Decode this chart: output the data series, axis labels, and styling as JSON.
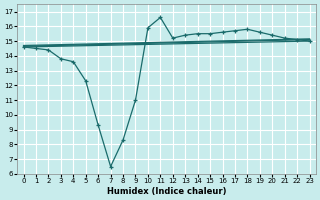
{
  "xlabel": "Humidex (Indice chaleur)",
  "ylabel": "",
  "background_color": "#c8ecec",
  "grid_color": "#ffffff",
  "line_color": "#1a6b6b",
  "xlim": [
    -0.5,
    23.5
  ],
  "ylim": [
    6,
    17.5
  ],
  "yticks": [
    6,
    7,
    8,
    9,
    10,
    11,
    12,
    13,
    14,
    15,
    16,
    17
  ],
  "xticks": [
    0,
    1,
    2,
    3,
    4,
    5,
    6,
    7,
    8,
    9,
    10,
    11,
    12,
    13,
    14,
    15,
    16,
    17,
    18,
    19,
    20,
    21,
    22,
    23
  ],
  "series": {
    "main": {
      "x": [
        0,
        1,
        2,
        3,
        4,
        5,
        6,
        7,
        8,
        9,
        10,
        11,
        12,
        13,
        14,
        15,
        16,
        17,
        18,
        19,
        20,
        21,
        22,
        23
      ],
      "y": [
        14.6,
        14.5,
        14.4,
        13.8,
        13.6,
        12.3,
        9.3,
        6.5,
        8.3,
        11.0,
        15.9,
        16.6,
        15.2,
        15.4,
        15.5,
        15.5,
        15.6,
        15.7,
        15.8,
        15.6,
        15.4,
        15.2,
        15.1,
        15.0
      ]
    },
    "line1": {
      "x": [
        0,
        23
      ],
      "y": [
        14.6,
        15.0
      ]
    },
    "line2": {
      "x": [
        0,
        23
      ],
      "y": [
        14.65,
        15.1
      ]
    },
    "line3": {
      "x": [
        0,
        23
      ],
      "y": [
        14.7,
        15.15
      ]
    }
  }
}
